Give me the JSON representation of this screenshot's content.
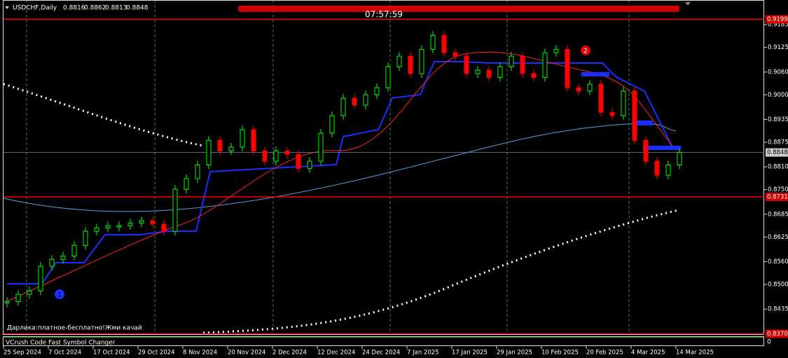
{
  "header": {
    "symbol": "USDCHF,Daily",
    "ohlc": [
      0.8816,
      0.8862,
      0.8813,
      0.8848
    ]
  },
  "clock": "07:57:59",
  "chart_data": {
    "type": "candlestick",
    "x_labels": [
      "25 Sep 2024",
      "7 Oct 2024",
      "17 Oct 2024",
      "29 Oct 2024",
      "8 Nov 2024",
      "20 Nov 2024",
      "2 Dec 2024",
      "12 Dec 2024",
      "24 Dec 2024",
      "7 Jan 2025",
      "17 Jan 2025",
      "29 Jan 2025",
      "10 Feb 2025",
      "20 Feb 2025",
      "4 Mar 2025",
      "14 Mar 2025"
    ],
    "close": [
      0.8455,
      0.8474,
      0.8483,
      0.8548,
      0.8566,
      0.8575,
      0.8603,
      0.864,
      0.8649,
      0.8655,
      0.8655,
      0.8662,
      0.8668,
      0.8659,
      0.864,
      0.8751,
      0.8779,
      0.8815,
      0.888,
      0.8852,
      0.8862,
      0.8908,
      0.8852,
      0.8825,
      0.8852,
      0.8843,
      0.8806,
      0.8825,
      0.8899,
      0.8945,
      0.8991,
      0.8973,
      0.9,
      0.9019,
      0.9074,
      0.9102,
      0.9056,
      0.912,
      0.9157,
      0.9111,
      0.9102,
      0.9056,
      0.9065,
      0.9046,
      0.9074,
      0.9102,
      0.9056,
      0.9046,
      0.9111,
      0.912,
      0.9019,
      0.901,
      0.9028,
      0.8954,
      0.8945,
      0.901,
      0.888,
      0.8825,
      0.8788,
      0.8815,
      0.8848
    ],
    "up_color": "#00ff00",
    "down_color": "#ff0000",
    "ylim": [
      0.8367,
      0.925
    ],
    "yticks": [
      0.9185,
      0.9125,
      {
        "value": 0.906,
        "label": "0.9060"
      },
      {
        "value": 0.9,
        "label": "0.9000"
      },
      0.8935,
      0.8875,
      {
        "value": 0.881,
        "label": "0.8810"
      },
      {
        "value": 0.875,
        "label": "0.8750"
      },
      0.8685,
      0.8625,
      {
        "value": 0.856,
        "label": "0.8560"
      },
      {
        "value": 0.85,
        "label": "0.8500"
      },
      0.8435
    ],
    "levels": [
      {
        "value": 0.9199,
        "label": "0.9199",
        "color": "#ff0000"
      },
      {
        "value": 0.8848,
        "label": "0.8848",
        "color": "#778899"
      },
      {
        "value": 0.8731,
        "label": "0.8731",
        "color": "#ff0000"
      },
      {
        "value": 0.837,
        "label": "0.8370",
        "color": "#ff0000"
      }
    ]
  },
  "markers": [
    "1",
    "2"
  ],
  "promo": "Дарлика:платное-бесплатно!Жми качай",
  "subwindow": {
    "title": "VCrush Code Fast Symbol Changer",
    "scale": "0"
  }
}
